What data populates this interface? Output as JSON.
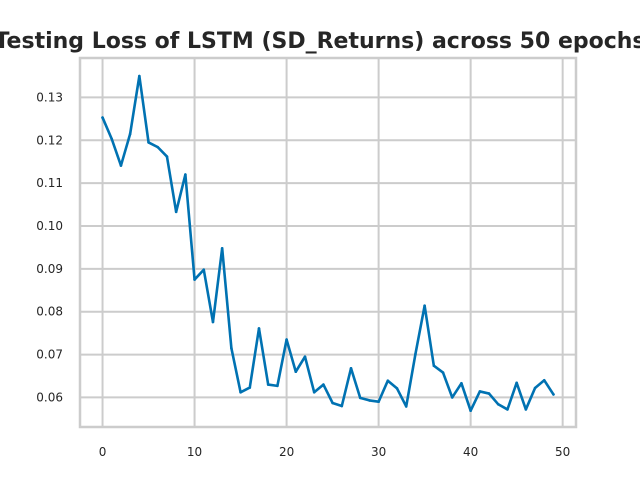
{
  "chart_data": {
    "type": "line",
    "title": "Testing Loss of LSTM (SD_Returns) across 50 epochs",
    "xlabel": "",
    "ylabel": "",
    "xlim": [
      -2.45,
      51.45
    ],
    "ylim": [
      0.0531,
      0.1392
    ],
    "xticks": [
      "0",
      "10",
      "20",
      "30",
      "40",
      "50"
    ],
    "xtick_values": [
      0,
      10,
      20,
      30,
      40,
      50
    ],
    "yticks": [
      "0.06",
      "0.07",
      "0.08",
      "0.09",
      "0.10",
      "0.11",
      "0.12",
      "0.13"
    ],
    "ytick_values": [
      0.06,
      0.07,
      0.08,
      0.09,
      0.1,
      0.11,
      0.12,
      0.13
    ],
    "grid": true,
    "series": [
      {
        "color": "#0072b2",
        "x": [
          0,
          1,
          2,
          3,
          4,
          5,
          6,
          7,
          8,
          9,
          10,
          11,
          12,
          13,
          14,
          15,
          16,
          17,
          18,
          19,
          20,
          21,
          22,
          23,
          24,
          25,
          26,
          27,
          28,
          29,
          30,
          31,
          32,
          33,
          34,
          35,
          36,
          37,
          38,
          39,
          40,
          41,
          42,
          43,
          44,
          45,
          46,
          47,
          48,
          49
        ],
        "values": [
          0.1253,
          0.1203,
          0.1141,
          0.1215,
          0.135,
          0.1195,
          0.1184,
          0.1162,
          0.1033,
          0.112,
          0.0875,
          0.0898,
          0.0776,
          0.0948,
          0.0715,
          0.0612,
          0.0623,
          0.0761,
          0.063,
          0.0627,
          0.0735,
          0.066,
          0.0695,
          0.0612,
          0.063,
          0.0587,
          0.058,
          0.0668,
          0.0599,
          0.0593,
          0.059,
          0.0639,
          0.0621,
          0.0579,
          0.0701,
          0.0814,
          0.0674,
          0.0658,
          0.06,
          0.0633,
          0.0569,
          0.0614,
          0.0609,
          0.0584,
          0.0572,
          0.0634,
          0.0572,
          0.0622,
          0.064,
          0.0607
        ]
      }
    ]
  }
}
